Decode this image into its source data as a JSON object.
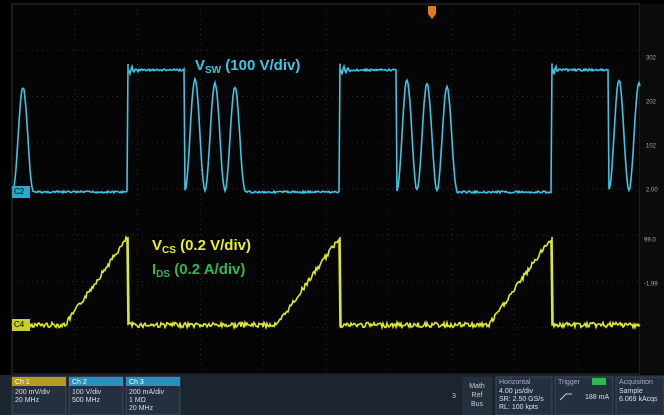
{
  "screen": {
    "labels": [
      {
        "main": "V",
        "sub": "SW",
        "rest": " (100 V/div)",
        "color": "#3cc6e6"
      },
      {
        "main": "V",
        "sub": "CS",
        "rest": " (0.2 V/div)",
        "color": "#e8ee2a"
      },
      {
        "main": "I",
        "sub": "DS",
        "rest": " (0.2 A/div)",
        "color": "#2fb84e"
      }
    ],
    "channel_markers": [
      "C2",
      "C4"
    ],
    "scale_upper": [
      "302",
      "202",
      "102",
      "2.00"
    ],
    "scale_lower": [
      "99.0",
      "-1.99"
    ]
  },
  "status_bar": {
    "channels": [
      {
        "title": "Ch 1",
        "lines": [
          "200 mV/div",
          "20 MHz"
        ]
      },
      {
        "title": "Ch 2",
        "lines": [
          "100 V/div",
          "500 MHz"
        ]
      },
      {
        "title": "Ch 3",
        "lines": [
          "200 mA/div",
          "1 MΩ",
          "20 MHz"
        ]
      }
    ],
    "page_number": "3",
    "menu": [
      "Math",
      "Ref",
      "Bus"
    ],
    "horizontal": {
      "title": "Horizontal",
      "lines": [
        "4.00 µs/div",
        "SR: 2.50 GS/s",
        "RL: 100 kpts"
      ]
    },
    "trigger": {
      "title": "Trigger",
      "value": "188 mA"
    },
    "acquisition": {
      "title": "Acquisition",
      "lines": [
        "Sample",
        "6.069 kAcqs"
      ]
    }
  }
}
